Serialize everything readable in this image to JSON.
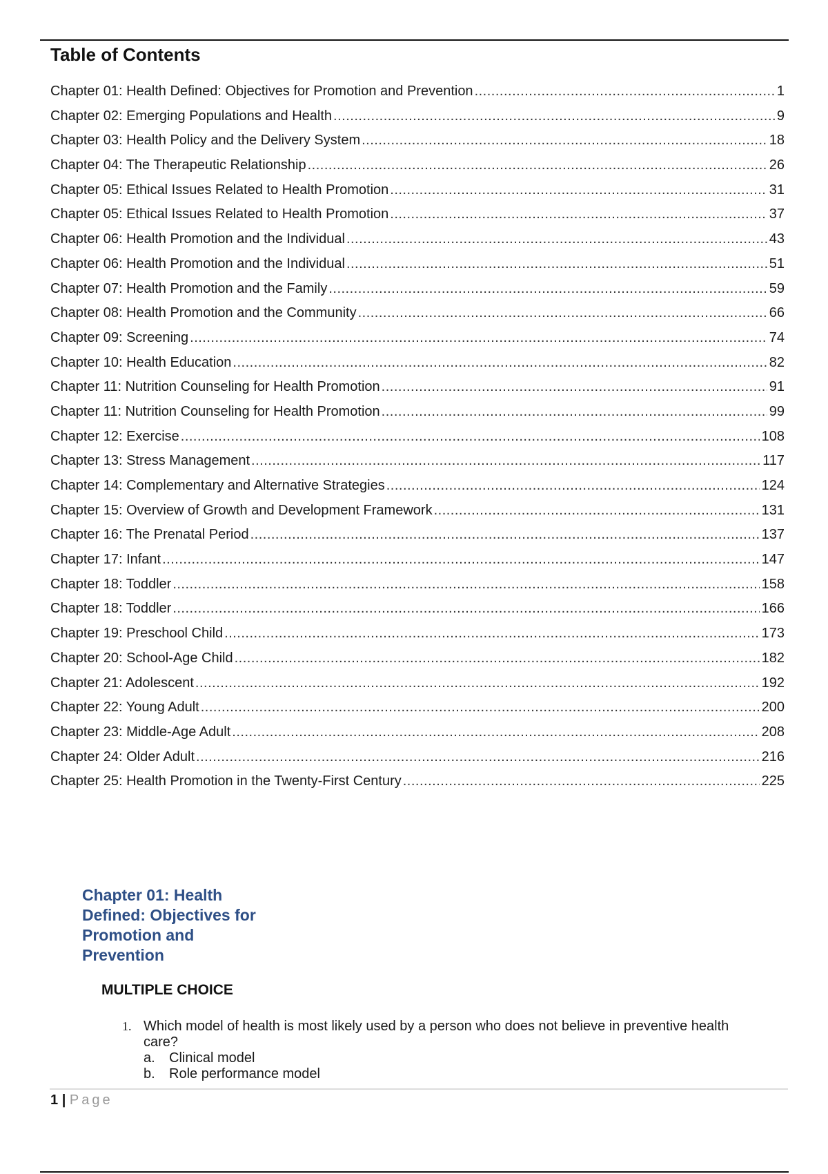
{
  "toc": {
    "title": "Table of Contents",
    "entries": [
      {
        "label": "Chapter 01: Health Defined: Objectives for Promotion and Prevention",
        "page": "1"
      },
      {
        "label": "Chapter 02: Emerging Populations and Health",
        "page": "9"
      },
      {
        "label": "Chapter 03: Health Policy and the Delivery System",
        "page": "18"
      },
      {
        "label": "Chapter 04: The Therapeutic Relationship",
        "page": "26"
      },
      {
        "label": "Chapter 05: Ethical Issues Related to Health Promotion",
        "page": "31"
      },
      {
        "label": "Chapter 05: Ethical Issues Related to Health Promotion",
        "page": "37"
      },
      {
        "label": "Chapter 06: Health Promotion and the Individual",
        "page": "43"
      },
      {
        "label": "Chapter 06: Health Promotion and the Individual",
        "page": "51"
      },
      {
        "label": "Chapter 07: Health Promotion and the Family",
        "page": "59"
      },
      {
        "label": "Chapter 08: Health Promotion and the Community",
        "page": "66"
      },
      {
        "label": "Chapter 09: Screening",
        "page": "74"
      },
      {
        "label": "Chapter 10: Health Education",
        "page": "82"
      },
      {
        "label": "Chapter 11: Nutrition Counseling for Health Promotion",
        "page": "91"
      },
      {
        "label": "Chapter 11: Nutrition Counseling for Health Promotion",
        "page": "99"
      },
      {
        "label": "Chapter 12: Exercise",
        "page": "108"
      },
      {
        "label": "Chapter 13: Stress Management",
        "page": "117"
      },
      {
        "label": "Chapter 14: Complementary and Alternative Strategies",
        "page": "124"
      },
      {
        "label": "Chapter 15: Overview of Growth and Development Framework",
        "page": "131"
      },
      {
        "label": "Chapter 16: The Prenatal Period",
        "page": "137"
      },
      {
        "label": "Chapter 17: Infant",
        "page": "147"
      },
      {
        "label": "Chapter 18: Toddler",
        "page": "158"
      },
      {
        "label": "Chapter 18: Toddler",
        "page": "166"
      },
      {
        "label": "Chapter 19: Preschool Child",
        "page": "173"
      },
      {
        "label": "Chapter 20: School-Age Child",
        "page": "182"
      },
      {
        "label": "Chapter 21: Adolescent",
        "page": "192"
      },
      {
        "label": "Chapter 22: Young Adult",
        "page": "200"
      },
      {
        "label": "Chapter 23: Middle-Age Adult",
        "page": "208"
      },
      {
        "label": "Chapter 24: Older Adult",
        "page": "216"
      },
      {
        "label": "Chapter 25: Health Promotion in the Twenty-First Century",
        "page": "225"
      }
    ]
  },
  "chapter": {
    "heading": "Chapter 01: Health Defined: Objectives for Promotion and Prevention",
    "section": "MULTIPLE CHOICE",
    "question": {
      "number": "1.",
      "text": "Which model of health is most likely used by a person who does not believe in preventive health care?",
      "options": [
        {
          "letter": "a.",
          "text": "Clinical model"
        },
        {
          "letter": "b.",
          "text": "Role performance model"
        }
      ]
    }
  },
  "footer": {
    "page_number": "1",
    "separator": "|",
    "page_label": "Page"
  },
  "colors": {
    "heading": "#2e4f86",
    "text": "#1a1a1a",
    "footer_label": "#999999"
  }
}
